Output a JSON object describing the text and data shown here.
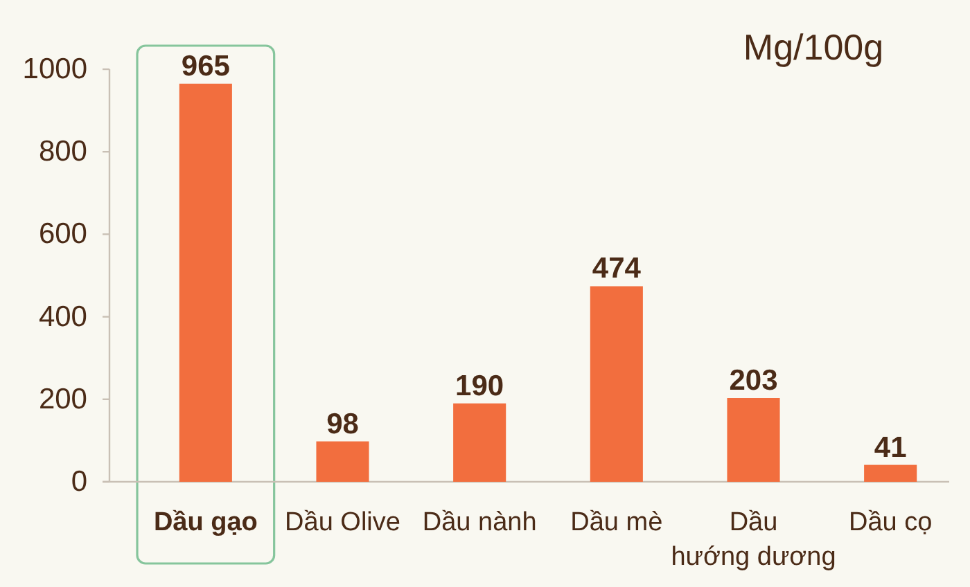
{
  "chart_data": {
    "type": "bar",
    "categories": [
      "Dầu gạo",
      "Dầu Olive",
      "Dầu nành",
      "Dầu mè",
      "Dầu hướng dương",
      "Dầu cọ"
    ],
    "values": [
      965,
      98,
      190,
      474,
      203,
      41
    ],
    "color": "#f26e3e",
    "ylim": [
      0,
      1000
    ],
    "yticks": [
      0,
      200,
      400,
      600,
      800,
      1000
    ],
    "data_labels": true,
    "annotations": [
      "Mg/100g"
    ]
  }
}
